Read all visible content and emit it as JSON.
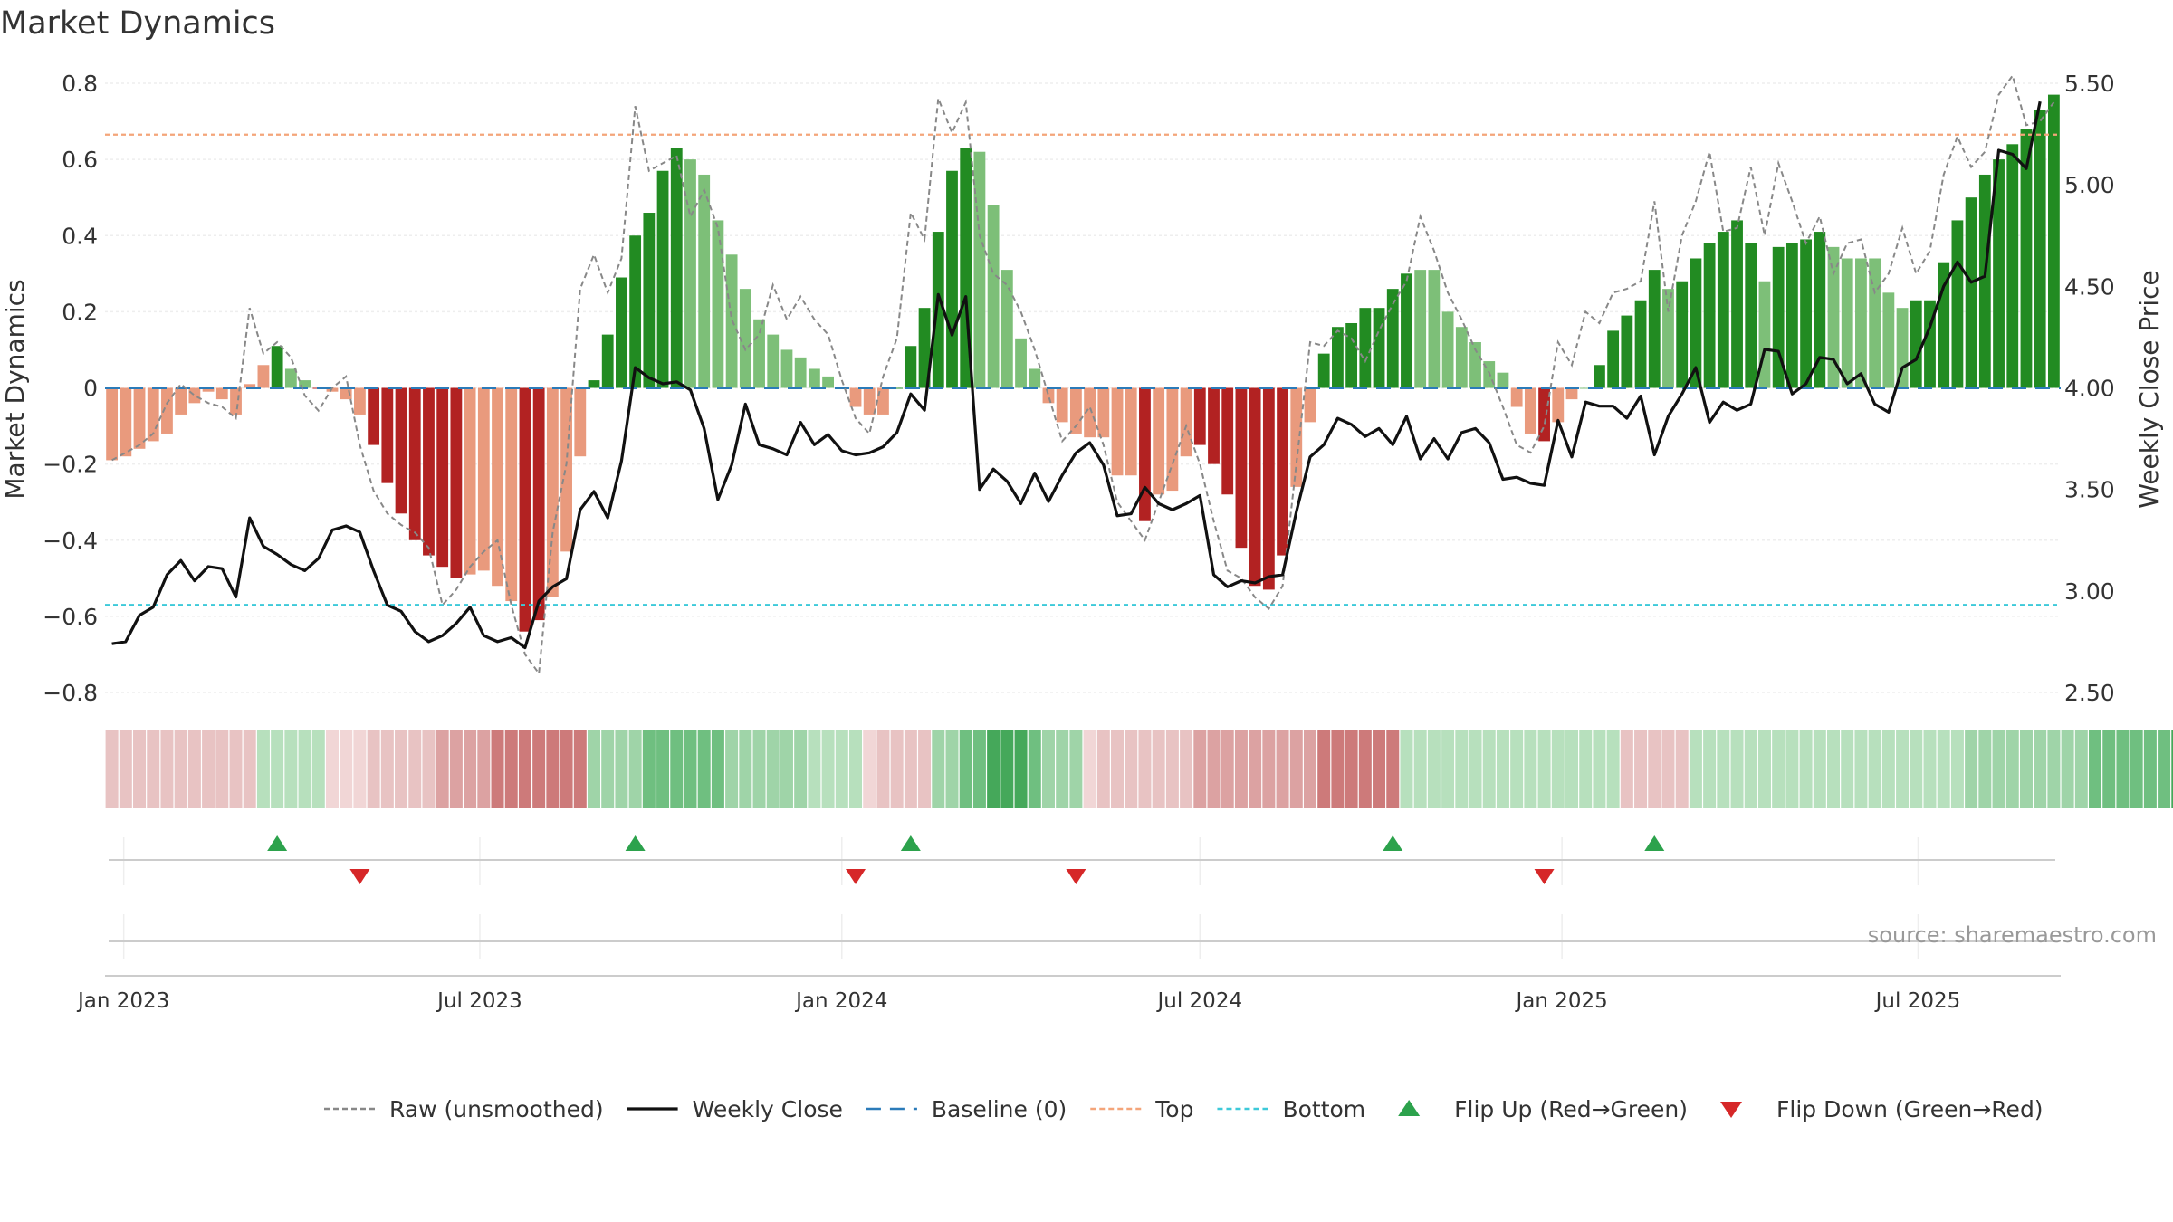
{
  "chart_data": {
    "type": "bar",
    "title": "Market Dynamics",
    "ylabel": "Market Dynamics",
    "y2label": "Weekly Close Price",
    "ylim": [
      -0.8,
      0.8
    ],
    "y2lim": [
      2.5,
      5.5
    ],
    "yticks": [
      -0.8,
      -0.6,
      -0.4,
      -0.2,
      0,
      0.2,
      0.4,
      0.6,
      0.8
    ],
    "y2ticks": [
      2.5,
      3.0,
      3.5,
      4.0,
      4.5,
      5.0,
      5.5
    ],
    "ytick_labels": [
      "−0.8",
      "−0.6",
      "−0.4",
      "−0.2",
      "0",
      "0.2",
      "0.4",
      "0.6",
      "0.8"
    ],
    "y2tick_labels": [
      "2.50",
      "3.00",
      "3.50",
      "4.00",
      "4.50",
      "5.00",
      "5.50"
    ],
    "top_level": 0.665,
    "bottom_level": -0.57,
    "baseline": 0,
    "start_date": "2022-12-26",
    "x_ticks": [
      {
        "label": "Jan 2023",
        "date": "2023-01-01"
      },
      {
        "label": "Jul 2023",
        "date": "2023-07-01"
      },
      {
        "label": "Jan 2024",
        "date": "2024-01-01"
      },
      {
        "label": "Jul 2024",
        "date": "2024-07-01"
      },
      {
        "label": "Jan 2025",
        "date": "2025-01-01"
      },
      {
        "label": "Jul 2025",
        "date": "2025-07-01"
      }
    ],
    "series": [
      {
        "name": "Market Dynamics",
        "values": [
          -0.19,
          -0.18,
          -0.16,
          -0.14,
          -0.12,
          -0.07,
          -0.04,
          -0.01,
          -0.03,
          -0.07,
          0.01,
          0.06,
          0.11,
          0.05,
          0.02,
          0,
          -0.01,
          -0.03,
          -0.07,
          -0.15,
          -0.25,
          -0.33,
          -0.4,
          -0.44,
          -0.47,
          -0.5,
          -0.49,
          -0.48,
          -0.52,
          -0.56,
          -0.64,
          -0.61,
          -0.55,
          -0.43,
          -0.18,
          0.02,
          0.14,
          0.29,
          0.4,
          0.46,
          0.57,
          0.63,
          0.6,
          0.56,
          0.44,
          0.35,
          0.26,
          0.18,
          0.14,
          0.1,
          0.08,
          0.05,
          0.03,
          0,
          -0.05,
          -0.07,
          -0.07,
          0,
          0.11,
          0.21,
          0.41,
          0.57,
          0.63,
          0.62,
          0.48,
          0.31,
          0.13,
          0.05,
          -0.04,
          -0.09,
          -0.12,
          -0.13,
          -0.13,
          -0.23,
          -0.23,
          -0.35,
          -0.28,
          -0.27,
          -0.18,
          -0.15,
          -0.2,
          -0.28,
          -0.42,
          -0.52,
          -0.53,
          -0.44,
          -0.26,
          -0.09,
          0.09,
          0.16,
          0.17,
          0.21,
          0.21,
          0.26,
          0.3,
          0.31,
          0.31,
          0.2,
          0.16,
          0.12,
          0.07,
          0.04,
          -0.05,
          -0.12,
          -0.14,
          -0.09,
          -0.03,
          0,
          0.06,
          0.15,
          0.19,
          0.23,
          0.31,
          0.26,
          0.28,
          0.34,
          0.38,
          0.41,
          0.44,
          0.38,
          0.28,
          0.37,
          0.38,
          0.39,
          0.41,
          0.37,
          0.34,
          0.34,
          0.34,
          0.25,
          0.21,
          0.23,
          0.23,
          0.33,
          0.44,
          0.5,
          0.56,
          0.6,
          0.64,
          0.68,
          0.73,
          0.77
        ],
        "colors": [
          "L",
          "L",
          "L",
          "L",
          "L",
          "L",
          "L",
          "L",
          "D",
          "D",
          "D",
          "D",
          "G",
          "L",
          "L",
          "R",
          "D",
          "D",
          "D",
          "R",
          "R",
          "R",
          "R",
          "R",
          "R",
          "R",
          "L",
          "L",
          "D",
          "D",
          "R",
          "R",
          "L",
          "L",
          "L",
          "G",
          "G",
          "G",
          "G",
          "G",
          "G",
          "G",
          "L",
          "L",
          "L",
          "L",
          "L",
          "L",
          "L",
          "L",
          "L",
          "L",
          "L",
          "L",
          "D",
          "D",
          "L",
          "G",
          "G",
          "G",
          "G",
          "G",
          "G",
          "L",
          "L",
          "L",
          "L",
          "L",
          "D",
          "D",
          "D",
          "D",
          "D",
          "D",
          "D",
          "R",
          "L",
          "L",
          "D",
          "R",
          "R",
          "R",
          "R",
          "R",
          "R",
          "R",
          "L",
          "L",
          "G",
          "G",
          "G",
          "G",
          "G",
          "G",
          "G",
          "L",
          "L",
          "L",
          "L",
          "L",
          "L",
          "L",
          "D",
          "D",
          "R",
          "L",
          "L",
          "L",
          "G",
          "G",
          "G",
          "G",
          "G",
          "L",
          "G",
          "G",
          "G",
          "G",
          "G",
          "G",
          "L",
          "G",
          "G",
          "G",
          "G",
          "L",
          "L",
          "L",
          "L",
          "L",
          "L",
          "G",
          "G",
          "G",
          "G",
          "G",
          "G",
          "G",
          "G",
          "G",
          "G",
          "G"
        ]
      },
      {
        "name": "Raw (unsmoothed)",
        "values": [
          -0.19,
          -0.17,
          -0.15,
          -0.12,
          -0.04,
          0.01,
          -0.02,
          -0.04,
          -0.05,
          -0.08,
          0.21,
          0.09,
          0.12,
          0.08,
          -0.02,
          -0.06,
          0,
          0.03,
          -0.15,
          -0.27,
          -0.33,
          -0.36,
          -0.38,
          -0.42,
          -0.57,
          -0.53,
          -0.47,
          -0.43,
          -0.4,
          -0.57,
          -0.7,
          -0.75,
          -0.38,
          -0.2,
          0.26,
          0.35,
          0.25,
          0.34,
          0.74,
          0.57,
          0.59,
          0.61,
          0.45,
          0.52,
          0.42,
          0.18,
          0.1,
          0.14,
          0.27,
          0.18,
          0.24,
          0.18,
          0.14,
          0.02,
          -0.08,
          -0.12,
          0.03,
          0.13,
          0.46,
          0.39,
          0.76,
          0.67,
          0.75,
          0.4,
          0.3,
          0.27,
          0.2,
          0.1,
          -0.02,
          -0.14,
          -0.1,
          -0.05,
          -0.15,
          -0.3,
          -0.35,
          -0.4,
          -0.3,
          -0.2,
          -0.1,
          -0.2,
          -0.35,
          -0.48,
          -0.5,
          -0.55,
          -0.58,
          -0.52,
          -0.2,
          0.12,
          0.11,
          0.15,
          0.13,
          0.07,
          0.15,
          0.22,
          0.28,
          0.45,
          0.36,
          0.25,
          0.18,
          0.1,
          0.04,
          -0.05,
          -0.15,
          -0.17,
          -0.1,
          0.12,
          0.06,
          0.2,
          0.17,
          0.25,
          0.26,
          0.28,
          0.49,
          0.2,
          0.4,
          0.49,
          0.62,
          0.41,
          0.42,
          0.58,
          0.4,
          0.59,
          0.49,
          0.38,
          0.45,
          0.3,
          0.38,
          0.39,
          0.25,
          0.3,
          0.42,
          0.3,
          0.36,
          0.56,
          0.66,
          0.58,
          0.62,
          0.77,
          0.82,
          0.69,
          0.7,
          0.75
        ]
      },
      {
        "name": "Weekly Close",
        "values": [
          2.74,
          2.75,
          2.88,
          2.92,
          3.08,
          3.15,
          3.05,
          3.12,
          3.11,
          2.97,
          3.36,
          3.22,
          3.18,
          3.13,
          3.1,
          3.16,
          3.3,
          3.32,
          3.29,
          3.1,
          2.93,
          2.9,
          2.8,
          2.75,
          2.78,
          2.84,
          2.92,
          2.78,
          2.75,
          2.77,
          2.72,
          2.95,
          3.02,
          3.06,
          3.4,
          3.49,
          3.36,
          3.64,
          4.1,
          4.05,
          4.02,
          4.03,
          3.99,
          3.8,
          3.45,
          3.62,
          3.92,
          3.72,
          3.7,
          3.67,
          3.83,
          3.72,
          3.77,
          3.69,
          3.67,
          3.68,
          3.71,
          3.78,
          3.97,
          3.89,
          4.46,
          4.26,
          4.45,
          3.5,
          3.6,
          3.54,
          3.43,
          3.58,
          3.44,
          3.57,
          3.68,
          3.73,
          3.62,
          3.37,
          3.38,
          3.51,
          3.43,
          3.4,
          3.43,
          3.47,
          3.08,
          3.02,
          3.05,
          3.04,
          3.07,
          3.08,
          3.39,
          3.66,
          3.72,
          3.85,
          3.82,
          3.76,
          3.8,
          3.72,
          3.86,
          3.65,
          3.75,
          3.65,
          3.78,
          3.8,
          3.73,
          3.55,
          3.56,
          3.53,
          3.52,
          3.84,
          3.66,
          3.93,
          3.91,
          3.91,
          3.85,
          3.96,
          3.67,
          3.86,
          3.97,
          4.1,
          3.83,
          3.93,
          3.89,
          3.92,
          4.19,
          4.18,
          3.97,
          4.02,
          4.15,
          4.14,
          4.02,
          4.07,
          3.92,
          3.88,
          4.1,
          4.14,
          4.3,
          4.5,
          4.62,
          4.52,
          4.55,
          5.17,
          5.15,
          5.08,
          5.41
        ]
      }
    ],
    "ribbon": [
      "l1",
      "l1",
      "l1",
      "l1",
      "l1",
      "l1",
      "l1",
      "l1",
      "l1",
      "l1",
      "l1",
      "g1",
      "g1",
      "g1",
      "g1",
      "g1",
      "l0",
      "l0",
      "l0",
      "l1",
      "l1",
      "l1",
      "l1",
      "l1",
      "l2",
      "l2",
      "l2",
      "l2",
      "l3",
      "l3",
      "l3",
      "l3",
      "l3",
      "l3",
      "l3",
      "g2",
      "g2",
      "g2",
      "g2",
      "g3",
      "g3",
      "g3",
      "g3",
      "g3",
      "g3",
      "g2",
      "g2",
      "g2",
      "g2",
      "g2",
      "g2",
      "g1",
      "g1",
      "g1",
      "g1",
      "l0",
      "l1",
      "l1",
      "l1",
      "l1",
      "g2",
      "g2",
      "g3",
      "g3",
      "g4",
      "g4",
      "g4",
      "g3",
      "g2",
      "g2",
      "g2",
      "l0",
      "l1",
      "l1",
      "l1",
      "l1",
      "l1",
      "l1",
      "l1",
      "l2",
      "l2",
      "l2",
      "l2",
      "l2",
      "l2",
      "l2",
      "l2",
      "l2",
      "l3",
      "l3",
      "l3",
      "l3",
      "l3",
      "l3",
      "g1",
      "g1",
      "g1",
      "g1",
      "g1",
      "g1",
      "g1",
      "g1",
      "g1",
      "g1",
      "g1",
      "g1",
      "g1",
      "g1",
      "g1",
      "g1",
      "l1",
      "l1",
      "l1",
      "l1",
      "l1",
      "g1",
      "g1",
      "g1",
      "g1",
      "g1",
      "g1",
      "g1",
      "g1",
      "g1",
      "g1",
      "g1",
      "g1",
      "g1",
      "g1",
      "g1",
      "g1",
      "g1",
      "g1",
      "g1",
      "g1",
      "g2",
      "g2",
      "g2",
      "g2",
      "g2",
      "g2",
      "g2",
      "g2",
      "g2",
      "g3",
      "g3",
      "g3",
      "g3",
      "g3",
      "g3",
      "g4",
      "g4",
      "g4"
    ],
    "flip_up_dates": [
      "2023-03-20",
      "2023-09-18",
      "2024-02-05",
      "2024-10-07",
      "2025-02-17"
    ],
    "flip_down_dates": [
      "2023-05-01",
      "2024-01-08",
      "2024-04-29",
      "2024-12-23"
    ],
    "legend": [
      {
        "label": "Raw (unsmoothed)",
        "kind": "dotted",
        "color": "#888888"
      },
      {
        "label": "Weekly Close",
        "kind": "solid",
        "color": "#111111"
      },
      {
        "label": "Baseline (0)",
        "kind": "dashed",
        "color": "#2b7bb9"
      },
      {
        "label": "Top",
        "kind": "dotted",
        "color": "#f4a57a"
      },
      {
        "label": "Bottom",
        "kind": "dotted",
        "color": "#3dc9d9"
      },
      {
        "label": "Flip Up (Red→Green)",
        "kind": "tri-up",
        "color": "#2ca24c"
      },
      {
        "label": "Flip Down (Green→Red)",
        "kind": "tri-down",
        "color": "#d62728"
      }
    ],
    "legend_position": "bottom",
    "grid": true,
    "source_text": "source: sharemaestro.com",
    "colors": {
      "dark_green": "#228b22",
      "light_green": "#7dbf78",
      "dark_red": "#b22222",
      "light_red": "#e99a7d",
      "ribbon": {
        "g1": "#b7e0bd",
        "g2": "#9fd4a8",
        "g3": "#6fbf80",
        "g4": "#45a85a",
        "l0": "#f1d6d6",
        "l1": "#e8c3c3",
        "l2": "#dca2a2",
        "l3": "#cd7a7a"
      }
    }
  }
}
